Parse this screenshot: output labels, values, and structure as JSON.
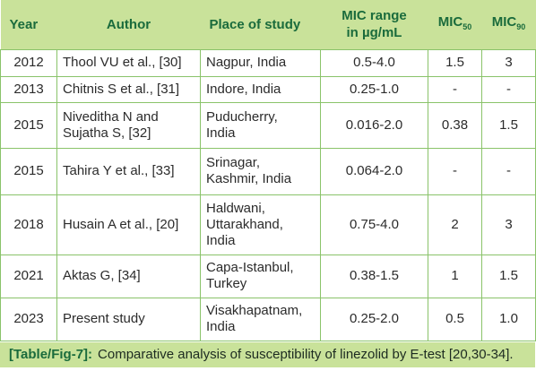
{
  "headers": {
    "year": "Year",
    "author": "Author",
    "place": "Place of study",
    "mic_range_1": "MIC range",
    "mic_range_2": "in µg/mL",
    "mic50_main": "MIC",
    "mic50_sub": "50",
    "mic90_main": "MIC",
    "mic90_sub": "90"
  },
  "rows": [
    {
      "year": "2012",
      "author_1": "Thool VU et al., [30]",
      "author_2": "",
      "place_1": "Nagpur, India",
      "place_2": "",
      "place_3": "",
      "range": "0.5-4.0",
      "mic50": "1.5",
      "mic90": "3"
    },
    {
      "year": "2013",
      "author_1": "Chitnis S et al., [31]",
      "author_2": "",
      "place_1": "Indore, India",
      "place_2": "",
      "place_3": "",
      "range": "0.25-1.0",
      "mic50": "-",
      "mic90": "-"
    },
    {
      "year": "2015",
      "author_1": "Niveditha N and",
      "author_2": "Sujatha S, [32]",
      "place_1": "Puducherry,",
      "place_2": "India",
      "place_3": "",
      "range": "0.016-2.0",
      "mic50": "0.38",
      "mic90": "1.5"
    },
    {
      "year": "2015",
      "author_1": "Tahira Y et al., [33]",
      "author_2": "",
      "place_1": "Srinagar,",
      "place_2": "Kashmir, India",
      "place_3": "",
      "range": "0.064-2.0",
      "mic50": "-",
      "mic90": "-"
    },
    {
      "year": "2018",
      "author_1": "Husain A et al., [20]",
      "author_2": "",
      "place_1": "Haldwani,",
      "place_2": "Uttarakhand,",
      "place_3": "India",
      "range": "0.75-4.0",
      "mic50": "2",
      "mic90": "3"
    },
    {
      "year": "2021",
      "author_1": "Aktas G, [34]",
      "author_2": "",
      "place_1": "Capa-Istanbul,",
      "place_2": "Turkey",
      "place_3": "",
      "range": "0.38-1.5",
      "mic50": "1",
      "mic90": "1.5"
    },
    {
      "year": "2023",
      "author_1": "Present study",
      "author_2": "",
      "place_1": "Visakhapatnam,",
      "place_2": "India",
      "place_3": "",
      "range": "0.25-2.0",
      "mic50": "0.5",
      "mic90": "1.0"
    }
  ],
  "caption": {
    "label": "[Table/Fig-7]:",
    "text": "Comparative analysis of susceptibility of linezolid by E-test [20,30-34]."
  },
  "colors": {
    "header_bg": "#c9e29a",
    "header_text": "#1a6b3c",
    "border": "#8ac36a"
  }
}
